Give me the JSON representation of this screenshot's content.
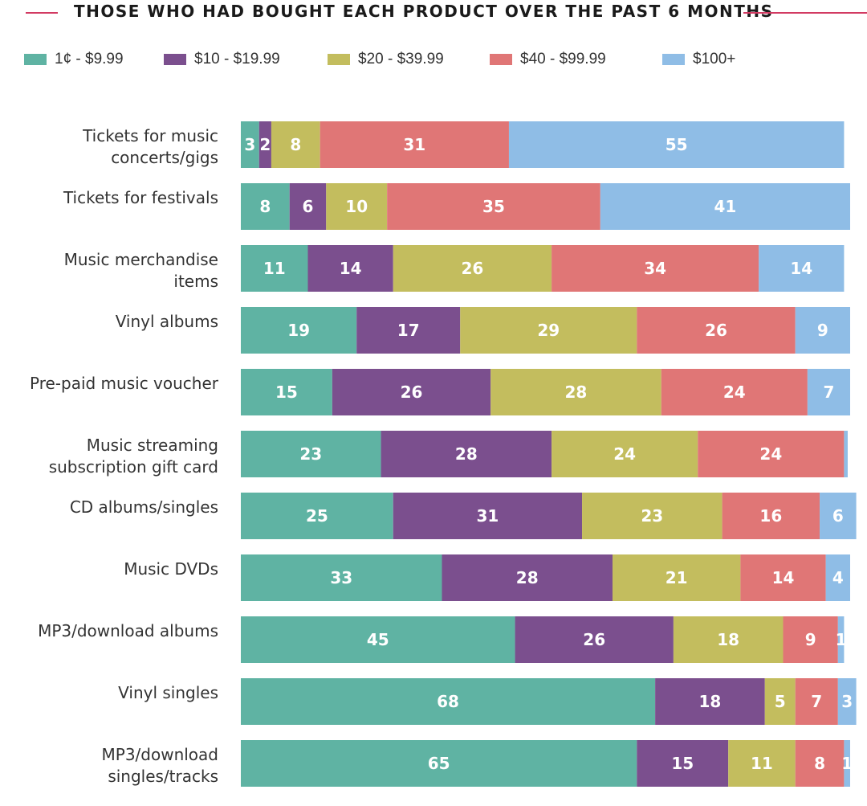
{
  "chart_data": {
    "type": "bar",
    "orientation": "horizontal",
    "stacked": true,
    "title": "THOSE WHO HAD BOUGHT EACH PRODUCT OVER THE PAST 6 MONTHS",
    "xlabel": "",
    "ylabel": "",
    "xlim": [
      0,
      100
    ],
    "grid": false,
    "legend_position": "top-left",
    "categories": [
      "Tickets for music concerts/gigs",
      "Tickets for festivals",
      "Music merchandise items",
      "Vinyl albums",
      "Pre-paid music voucher",
      "Music streaming subscription gift card",
      "CD albums/singles",
      "Music DVDs",
      "MP3/download albums",
      "Vinyl singles",
      "MP3/download singles/tracks"
    ],
    "category_lines": [
      [
        "Tickets for music",
        "concerts/gigs"
      ],
      [
        "Tickets for festivals"
      ],
      [
        "Music merchandise",
        "items"
      ],
      [
        "Vinyl albums"
      ],
      [
        "Pre-paid music voucher"
      ],
      [
        "Music streaming",
        "subscription gift card"
      ],
      [
        "CD albums/singles"
      ],
      [
        "Music DVDs"
      ],
      [
        "MP3/download albums"
      ],
      [
        "Vinyl singles"
      ],
      [
        "MP3/download",
        "singles/tracks"
      ]
    ],
    "series": [
      {
        "name": "1¢ - $9.99",
        "color": "#5fb3a3",
        "values": [
          3,
          8,
          11,
          19,
          15,
          23,
          25,
          33,
          45,
          68,
          65
        ]
      },
      {
        "name": "$10 - $19.99",
        "color": "#7b4f8e",
        "values": [
          2,
          6,
          14,
          17,
          26,
          28,
          31,
          28,
          26,
          18,
          15
        ]
      },
      {
        "name": "$20 - $39.99",
        "color": "#c3bd5e",
        "values": [
          8,
          10,
          26,
          29,
          28,
          24,
          23,
          21,
          18,
          5,
          11
        ]
      },
      {
        "name": "$40 - $99.99",
        "color": "#e07676",
        "values": [
          31,
          35,
          34,
          26,
          24,
          24,
          16,
          14,
          9,
          7,
          8
        ]
      },
      {
        "name": "$100+",
        "color": "#8fbde6",
        "values": [
          55,
          41,
          14,
          9,
          7,
          0.6,
          6,
          4,
          1,
          3,
          1
        ]
      }
    ],
    "data_labels": [
      [
        "3",
        "2",
        "8",
        "31",
        "55"
      ],
      [
        "8",
        "6",
        "10",
        "35",
        "41"
      ],
      [
        "11",
        "14",
        "26",
        "34",
        "14"
      ],
      [
        "19",
        "17",
        "29",
        "26",
        "9"
      ],
      [
        "15",
        "26",
        "28",
        "24",
        "7"
      ],
      [
        "23",
        "28",
        "24",
        "24",
        ""
      ],
      [
        "25",
        "31",
        "23",
        "16",
        "6"
      ],
      [
        "33",
        "28",
        "21",
        "14",
        "4"
      ],
      [
        "45",
        "26",
        "18",
        "9",
        "1"
      ],
      [
        "68",
        "18",
        "5",
        "7",
        "3"
      ],
      [
        "65",
        "15",
        "11",
        "8",
        "1"
      ]
    ]
  }
}
